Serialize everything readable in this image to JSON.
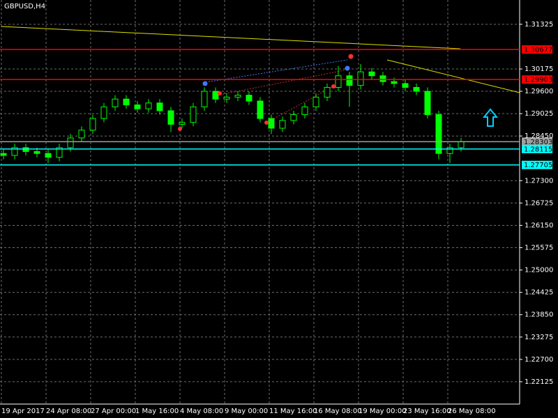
{
  "chart_data": {
    "type": "candlestick",
    "title": "GBPUSD,H4",
    "categories": [
      "19 Apr 2017",
      null,
      null,
      null,
      "24 Apr 08:00",
      null,
      null,
      null,
      "27 Apr 00:00",
      null,
      null,
      null,
      "1 May 16:00",
      null,
      null,
      null,
      "4 May 08:00",
      null,
      null,
      null,
      "9 May 00:00",
      null,
      null,
      null,
      "11 May 16:00",
      null,
      null,
      null,
      "16 May 08:00",
      null,
      null,
      null,
      "19 May 00:00",
      null,
      null,
      null,
      "23 May 16:00",
      null,
      null,
      null,
      "26 May 08:00",
      null
    ],
    "open": [
      1.28,
      1.2795,
      1.2815,
      1.2805,
      1.28,
      1.279,
      1.2815,
      1.284,
      1.286,
      1.289,
      1.292,
      1.294,
      1.2925,
      1.2915,
      1.293,
      1.291,
      1.2875,
      1.288,
      1.292,
      1.296,
      1.294,
      1.2945,
      1.295,
      1.2935,
      1.289,
      1.2865,
      1.2885,
      1.29,
      1.292,
      1.2945,
      1.297,
      1.3,
      1.2975,
      1.301,
      1.3,
      1.2985,
      1.298,
      1.297,
      1.296,
      1.29,
      1.28,
      1.2815
    ],
    "high": [
      1.281,
      1.2825,
      1.2825,
      1.2815,
      1.281,
      1.2825,
      1.285,
      1.287,
      1.29,
      1.293,
      1.295,
      1.295,
      1.2935,
      1.294,
      1.294,
      1.292,
      1.289,
      1.293,
      1.297,
      1.297,
      1.2955,
      1.296,
      1.296,
      1.2945,
      1.29,
      1.2895,
      1.291,
      1.293,
      1.2955,
      1.298,
      1.3025,
      1.301,
      1.303,
      1.302,
      1.301,
      1.2995,
      1.299,
      1.298,
      1.297,
      1.291,
      1.2825,
      1.284
    ],
    "low": [
      1.2785,
      1.2785,
      1.2795,
      1.279,
      1.2775,
      1.278,
      1.2805,
      1.283,
      1.285,
      1.288,
      1.291,
      1.2915,
      1.2905,
      1.2905,
      1.29,
      1.2855,
      1.2865,
      1.287,
      1.291,
      1.293,
      1.293,
      1.2935,
      1.2925,
      1.288,
      1.285,
      1.2855,
      1.2875,
      1.289,
      1.291,
      1.2935,
      1.296,
      1.292,
      1.2965,
      1.299,
      1.2975,
      1.297,
      1.296,
      1.295,
      1.289,
      1.2785,
      1.2775,
      1.2805
    ],
    "close": [
      1.2795,
      1.2815,
      1.2805,
      1.28,
      1.279,
      1.2815,
      1.284,
      1.286,
      1.289,
      1.292,
      1.294,
      1.2925,
      1.2915,
      1.293,
      1.291,
      1.2875,
      1.288,
      1.292,
      1.296,
      1.294,
      1.2945,
      1.295,
      1.2935,
      1.289,
      1.2865,
      1.2885,
      1.29,
      1.292,
      1.2945,
      1.297,
      1.3,
      1.2975,
      1.301,
      1.3,
      1.2985,
      1.298,
      1.297,
      1.296,
      1.29,
      1.28,
      1.2815,
      1.283
    ],
    "color": "#00ff00",
    "ylim": [
      1.2155,
      1.3195
    ],
    "yticks": [
      1.31325,
      1.30175,
      {
        "value": 1.296,
        "label": "1.29600"
      },
      1.29025,
      {
        "value": 1.2845,
        "label": "1.28450"
      },
      {
        "value": 1.273,
        "label": "1.27300"
      },
      1.26725,
      {
        "value": 1.2615,
        "label": "1.26150"
      },
      1.25575,
      {
        "value": 1.25,
        "label": "1.25000"
      },
      1.24425,
      {
        "value": 1.2385,
        "label": "1.23850"
      },
      1.23275,
      {
        "value": 1.227,
        "label": "1.22700"
      },
      1.22125
    ],
    "levels": [
      {
        "value": 1.30677,
        "color": "#ff0000"
      },
      {
        "value": 1.29903,
        "color": "#ff0000"
      },
      {
        "value": 1.28303,
        "color": "#a0a0a0"
      },
      {
        "value": 1.28115,
        "color": "#00ffff"
      },
      {
        "value": 1.27705,
        "color": "#00ffff"
      }
    ],
    "grid": true
  }
}
